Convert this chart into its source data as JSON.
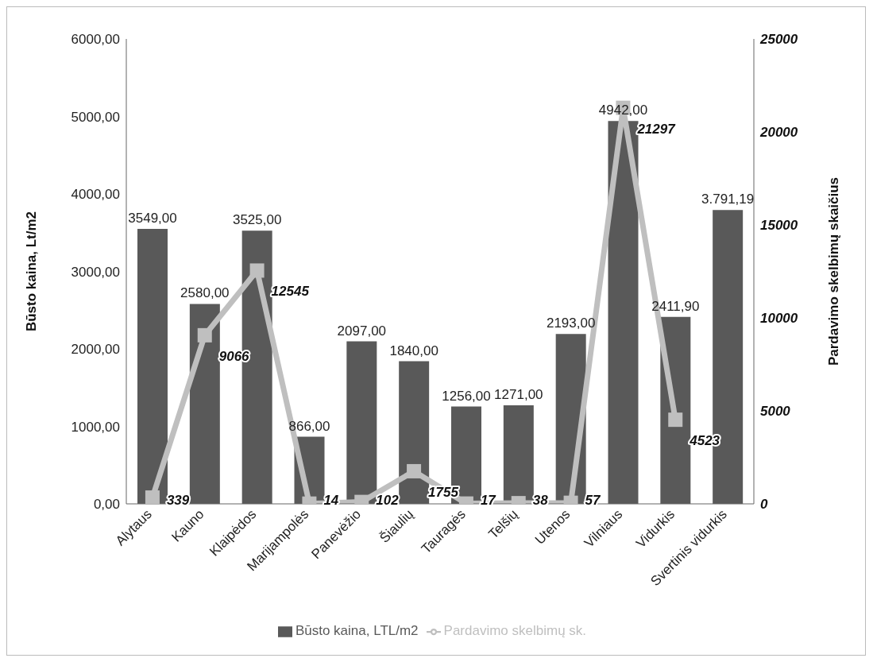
{
  "chart_data": {
    "type": "bar",
    "categories": [
      "Alytaus",
      "Kauno",
      "Klaipėdos",
      "Marijampolės",
      "Panevėžio",
      "Šiaulių",
      "Tauragės",
      "Telšių",
      "Utenos",
      "Vilniaus",
      "Vidurkis",
      "Svertinis vidurkis"
    ],
    "ylabel": "Būsto kaina, Lt/m2",
    "y2label": "Pardavimo skelbimų skaičius",
    "series": [
      {
        "name": "Būsto kaina, LTL/m2",
        "color": "#595959",
        "values": [
          3549,
          2580,
          3525,
          866,
          2097,
          1840,
          1256,
          1271,
          2193,
          4942,
          2411.9,
          3791.19
        ],
        "value_labels": [
          "3549,00",
          "2580,00",
          "3525,00",
          "866,00",
          "2097,00",
          "1840,00",
          "1256,00",
          "1271,00",
          "2193,00",
          "4942,00",
          "2411,90",
          "3.791,19"
        ]
      },
      {
        "name": "Pardavimo skelbimų sk.",
        "type": "line",
        "axis": "y2",
        "color": "#bfbfbf",
        "marker": "square",
        "values": [
          339,
          9066,
          12545,
          14,
          102,
          1755,
          17,
          38,
          57,
          21297,
          4523,
          null
        ],
        "value_labels": [
          "339",
          "9066",
          "12545",
          "14",
          "102",
          "1755",
          "17",
          "38",
          "57",
          "21297",
          "4523",
          null
        ]
      }
    ],
    "ylim": [
      0,
      6000
    ],
    "yticks": [
      {
        "value": 0,
        "label": "0,00"
      },
      {
        "value": 1000,
        "label": "1000,00"
      },
      {
        "value": 2000,
        "label": "2000,00"
      },
      {
        "value": 3000,
        "label": "3000,00"
      },
      {
        "value": 4000,
        "label": "4000,00"
      },
      {
        "value": 5000,
        "label": "5000,00"
      },
      {
        "value": 6000,
        "label": "6000,00"
      }
    ],
    "y2lim": [
      0,
      25000
    ],
    "y2ticks": [
      0,
      5000,
      10000,
      15000,
      20000,
      25000
    ],
    "grid": false,
    "legend": "bottom"
  }
}
